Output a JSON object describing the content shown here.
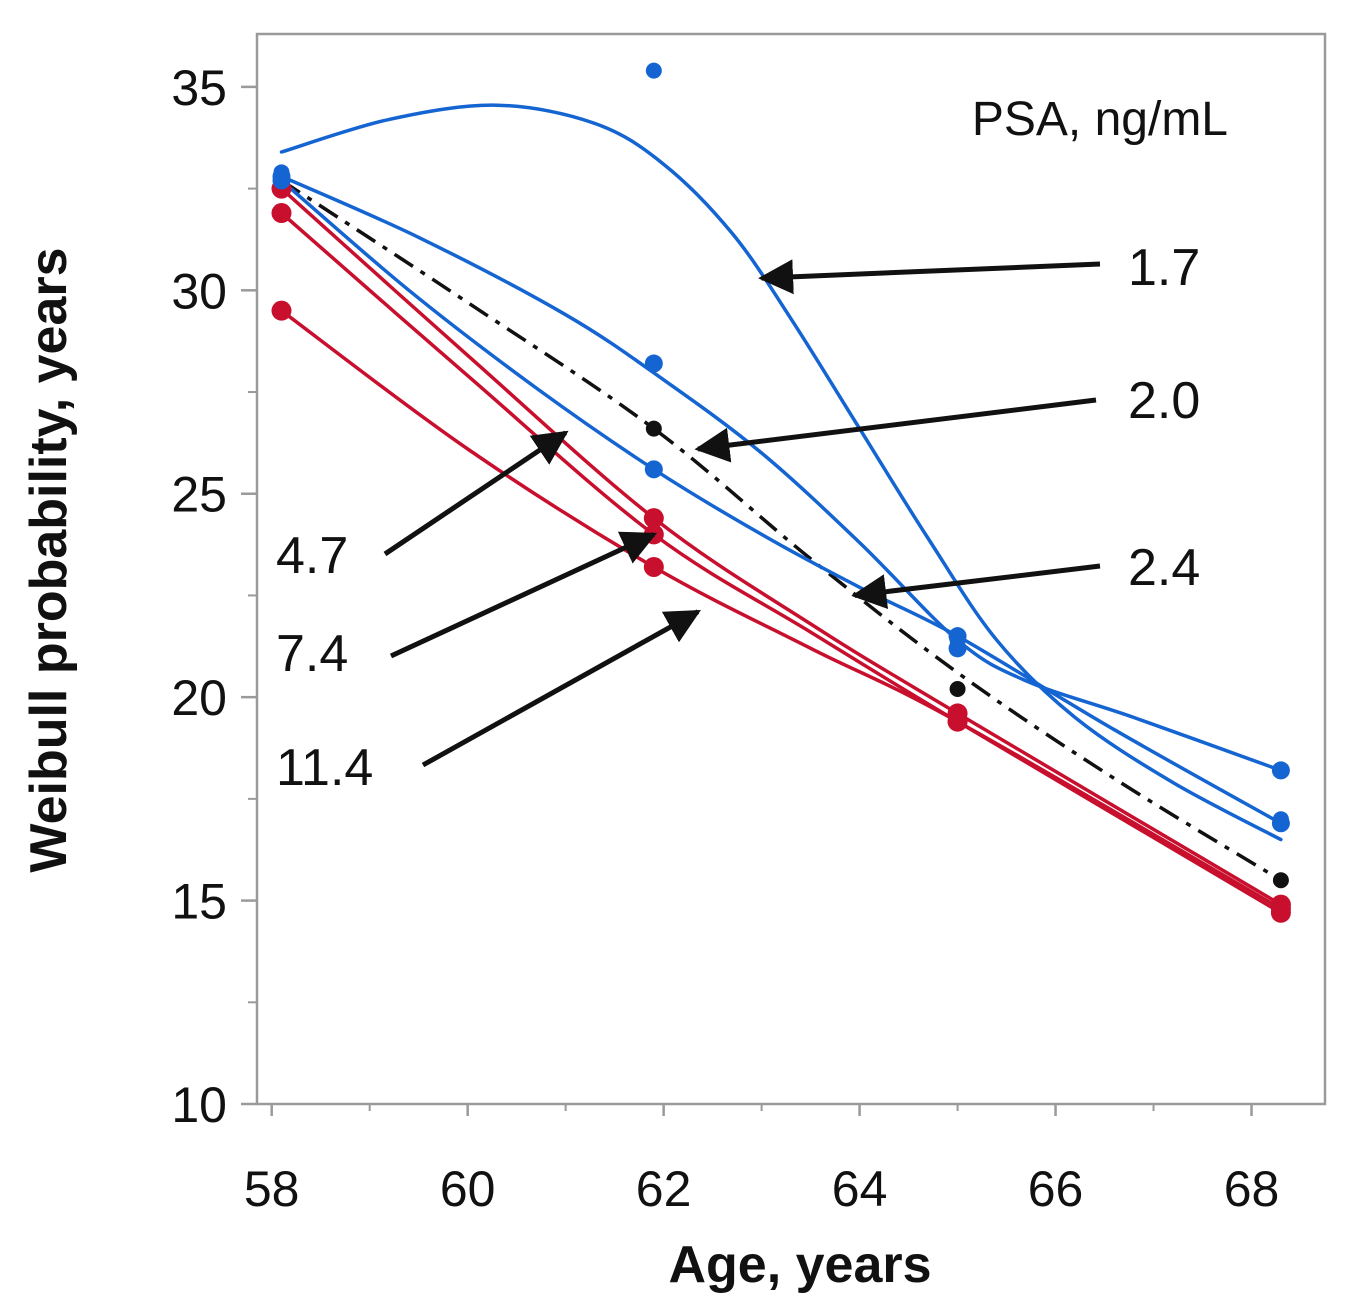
{
  "chart_data": {
    "type": "line",
    "xlabel": "Age, years",
    "ylabel": "Weibull probability, years",
    "legend_title": "PSA, ng/mL",
    "xlim": [
      57.85,
      68.75
    ],
    "ylim": [
      10,
      36.3
    ],
    "x_ticks": [
      58,
      60,
      62,
      64,
      66,
      68
    ],
    "x_tick_labels": [
      "58",
      "60",
      "62",
      "64",
      "66",
      "68"
    ],
    "y_ticks": [
      10,
      15,
      20,
      25,
      30,
      35
    ],
    "y_tick_labels": [
      "10",
      "15",
      "20",
      "25",
      "30",
      "35"
    ],
    "colors": {
      "blue": "#1464d2",
      "red": "#c8102e",
      "black": "#111111"
    },
    "series": [
      {
        "name": "1.7",
        "color": "#1464d2",
        "style": "solid",
        "marker_size": 8,
        "points": {
          "x": [
            58.1,
            61.9,
            65.0,
            68.3
          ],
          "y": [
            32.9,
            35.4,
            21.4,
            17.0
          ]
        },
        "curve": [
          [
            58.1,
            33.4
          ],
          [
            59.2,
            34.2
          ],
          [
            60.3,
            34.55
          ],
          [
            61.3,
            34.1
          ],
          [
            62.0,
            33.1
          ],
          [
            62.7,
            31.4
          ],
          [
            63.3,
            29.3
          ],
          [
            64.0,
            26.6
          ],
          [
            64.7,
            23.9
          ],
          [
            65.4,
            21.4
          ],
          [
            66.2,
            19.5
          ],
          [
            67.2,
            17.9
          ],
          [
            68.3,
            16.5
          ]
        ]
      },
      {
        "name": "2.0",
        "color": "#1464d2",
        "style": "solid",
        "marker_size": 9,
        "points": {
          "x": [
            58.1,
            61.9,
            65.0,
            68.3
          ],
          "y": [
            32.8,
            28.2,
            21.2,
            18.2
          ]
        },
        "curve": [
          [
            58.1,
            32.8
          ],
          [
            59.5,
            31.3
          ],
          [
            61.0,
            29.4
          ],
          [
            62.0,
            27.8
          ],
          [
            63.0,
            26.0
          ],
          [
            64.0,
            23.8
          ],
          [
            65.0,
            21.4
          ],
          [
            65.7,
            20.4
          ],
          [
            66.8,
            19.5
          ],
          [
            68.3,
            18.2
          ]
        ]
      },
      {
        "name": "2.4",
        "color": "#1464d2",
        "style": "solid",
        "marker_size": 9,
        "points": {
          "x": [
            58.1,
            61.9,
            65.0,
            68.3
          ],
          "y": [
            32.7,
            25.6,
            21.5,
            16.9
          ]
        },
        "curve": [
          [
            58.1,
            32.7
          ],
          [
            59.4,
            30.0
          ],
          [
            60.7,
            27.6
          ],
          [
            61.9,
            25.6
          ],
          [
            63.0,
            24.0
          ],
          [
            64.0,
            22.7
          ],
          [
            65.0,
            21.5
          ],
          [
            66.6,
            19.2
          ],
          [
            68.3,
            16.9
          ]
        ]
      },
      {
        "name": "black",
        "color": "#111111",
        "style": "dashdot",
        "marker_size": 8,
        "points": {
          "x": [
            61.9,
            65.0,
            68.3
          ],
          "y": [
            26.6,
            20.2,
            15.5
          ]
        },
        "curve": [
          [
            58.1,
            32.7
          ],
          [
            60.0,
            29.7
          ],
          [
            61.9,
            26.6
          ],
          [
            63.5,
            23.4
          ],
          [
            65.0,
            20.6
          ],
          [
            66.6,
            18.0
          ],
          [
            68.3,
            15.5
          ]
        ]
      },
      {
        "name": "4.7",
        "color": "#c8102e",
        "style": "solid",
        "marker_size": 10,
        "points": {
          "x": [
            58.1,
            61.9,
            65.0,
            68.3
          ],
          "y": [
            32.5,
            24.4,
            19.6,
            14.9
          ]
        },
        "curve": [
          [
            58.1,
            32.5
          ],
          [
            60.0,
            28.4
          ],
          [
            61.9,
            24.4
          ],
          [
            63.5,
            21.8
          ],
          [
            65.0,
            19.6
          ],
          [
            68.3,
            14.9
          ]
        ]
      },
      {
        "name": "7.4",
        "color": "#c8102e",
        "style": "solid",
        "marker_size": 10,
        "points": {
          "x": [
            58.1,
            61.9,
            65.0,
            68.3
          ],
          "y": [
            31.9,
            24.0,
            19.4,
            14.7
          ]
        },
        "curve": [
          [
            58.1,
            31.9
          ],
          [
            60.0,
            27.9
          ],
          [
            61.9,
            24.0
          ],
          [
            63.5,
            21.6
          ],
          [
            65.0,
            19.4
          ],
          [
            68.3,
            14.7
          ]
        ]
      },
      {
        "name": "11.4",
        "color": "#c8102e",
        "style": "solid",
        "marker_size": 10,
        "points": {
          "x": [
            58.1,
            61.9,
            65.0,
            68.3
          ],
          "y": [
            29.5,
            23.2,
            19.4,
            14.8
          ]
        },
        "curve": [
          [
            58.1,
            29.5
          ],
          [
            60.0,
            26.1
          ],
          [
            61.9,
            23.2
          ],
          [
            63.5,
            21.2
          ],
          [
            65.0,
            19.4
          ],
          [
            68.3,
            14.8
          ]
        ]
      }
    ],
    "annotations": [
      {
        "label": "1.7",
        "tip": [
          63.0,
          30.3
        ]
      },
      {
        "label": "2.0",
        "tip": [
          62.35,
          26.1
        ]
      },
      {
        "label": "2.4",
        "tip": [
          63.95,
          22.5
        ]
      },
      {
        "label": "4.7",
        "tip": [
          61.0,
          26.5
        ]
      },
      {
        "label": "7.4",
        "tip": [
          61.9,
          24.0
        ]
      },
      {
        "label": "11.4",
        "tip": [
          62.35,
          22.1
        ]
      }
    ]
  }
}
